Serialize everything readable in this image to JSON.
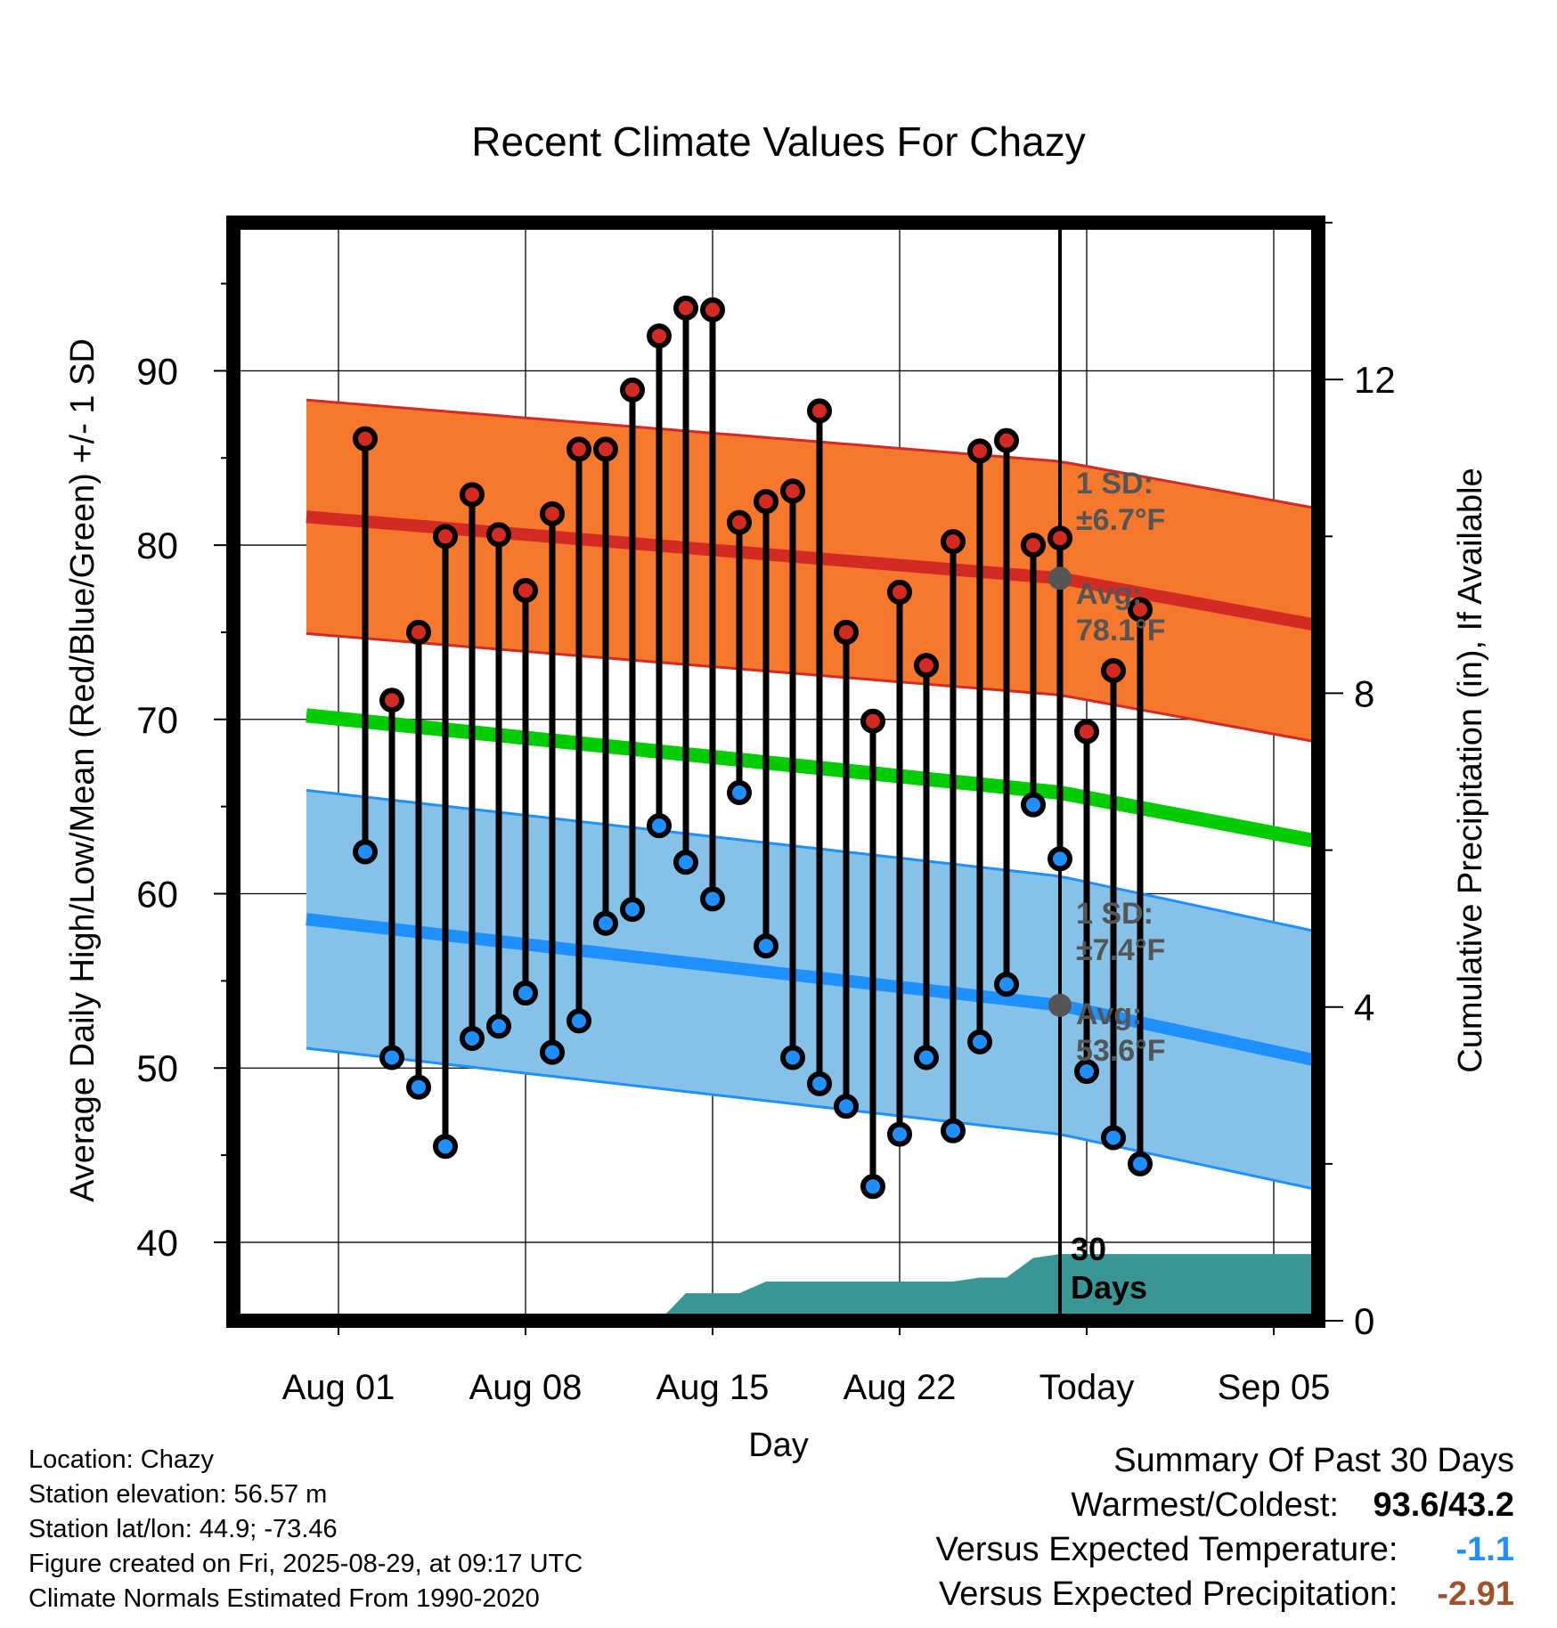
{
  "chart_data": {
    "type": "line",
    "title": "Recent Climate Values For Chazy",
    "xlabel": "Day",
    "ylabel": "Average Daily High/Low/Mean (Red/Blue/Green) +/- 1 SD",
    "y2label": "Cumulative Precipitation (in), If Available",
    "x_tick_labels": [
      "Aug 01",
      "Aug 08",
      "Aug 15",
      "Aug 22",
      "Today",
      "Sep 05"
    ],
    "y_ticks": [
      40,
      50,
      60,
      70,
      80,
      90
    ],
    "y2_ticks": [
      0,
      4,
      8,
      12
    ],
    "ylim": [
      35.5,
      98.5
    ],
    "y2lim": [
      0,
      14
    ],
    "today_label": "30\nDays",
    "grid": true,
    "daily_observations": {
      "day_offset": [
        -26,
        -25,
        -24,
        -23,
        -22,
        -21,
        -20,
        -19,
        -18,
        -17,
        -16,
        -15,
        -14,
        -13,
        -12,
        -11,
        -10,
        -9,
        -8,
        -7,
        -6,
        -5,
        -4,
        -3,
        -2,
        -1,
        0,
        1,
        2,
        3
      ],
      "high": [
        86.1,
        71.1,
        75.0,
        80.5,
        82.9,
        80.6,
        77.4,
        81.8,
        85.5,
        85.5,
        88.9,
        92.0,
        93.6,
        93.5,
        81.3,
        82.5,
        83.1,
        87.7,
        75.0,
        69.9,
        77.3,
        73.1,
        80.2,
        85.4,
        86.0,
        80.0,
        80.4,
        69.3,
        72.8,
        76.3
      ],
      "low": [
        62.4,
        50.6,
        48.9,
        45.5,
        51.7,
        52.4,
        54.3,
        50.9,
        52.7,
        58.3,
        59.1,
        63.9,
        61.8,
        59.7,
        65.8,
        57.0,
        50.6,
        49.1,
        47.8,
        43.2,
        46.2,
        50.6,
        46.4,
        51.5,
        54.8,
        65.1,
        62.0,
        49.8,
        46.0,
        44.5
      ]
    },
    "normals": {
      "high_avg": [
        81.6,
        78.1,
        75.3
      ],
      "high_sd": 6.7,
      "low_avg": [
        58.5,
        53.6,
        50.3
      ],
      "low_sd": 7.4,
      "mean_avg": [
        70.2,
        65.8,
        62.9
      ],
      "day_offset_points": [
        -28,
        0,
        10
      ]
    },
    "precip_cumulative": [
      {
        "day_offset": -28,
        "value": 0.0
      },
      {
        "day_offset": -15,
        "value": 0.0
      },
      {
        "day_offset": -14,
        "value": 0.35
      },
      {
        "day_offset": -12,
        "value": 0.35
      },
      {
        "day_offset": -11,
        "value": 0.5
      },
      {
        "day_offset": -4,
        "value": 0.5
      },
      {
        "day_offset": -3,
        "value": 0.55
      },
      {
        "day_offset": -2,
        "value": 0.55
      },
      {
        "day_offset": -1,
        "value": 0.8
      },
      {
        "day_offset": 0,
        "value": 0.85
      },
      {
        "day_offset": 10,
        "value": 0.85
      }
    ],
    "annotations": {
      "high_sd_label": "1 SD:\n±6.7°F",
      "high_avg_label": "Avg:\n78.1°F",
      "low_sd_label": "1 SD:\n±7.4°F",
      "low_avg_label": "Avg:\n53.6°F"
    },
    "colors": {
      "high_band": "#f5782d",
      "high_line": "#d42a24",
      "low_band": "#86c2e8",
      "low_line": "#1e90ff",
      "mean_line": "#00cc00",
      "precip": "#3a9595",
      "high_marker": "#d42a24",
      "low_marker": "#1e90ff",
      "annotation_text": "#555555"
    }
  },
  "info": {
    "location": "Location: Chazy",
    "elevation": "Station elevation: 56.57 m",
    "latlon": "Station lat/lon: 44.9; -73.46",
    "created": "Figure created on Fri, 2025-08-29, at 09:17 UTC",
    "normals": "Climate Normals Estimated From 1990-2020"
  },
  "summary": {
    "title": "Summary Of Past 30 Days",
    "warm_cold_label": "Warmest/Coldest:",
    "warm_cold_value": "93.6/43.2",
    "temp_label": "Versus Expected Temperature:",
    "temp_value": "-1.1",
    "temp_color": "#1e90ff",
    "precip_label": "Versus Expected Precipitation:",
    "precip_value": "-2.91",
    "precip_color": "#a0522d"
  }
}
